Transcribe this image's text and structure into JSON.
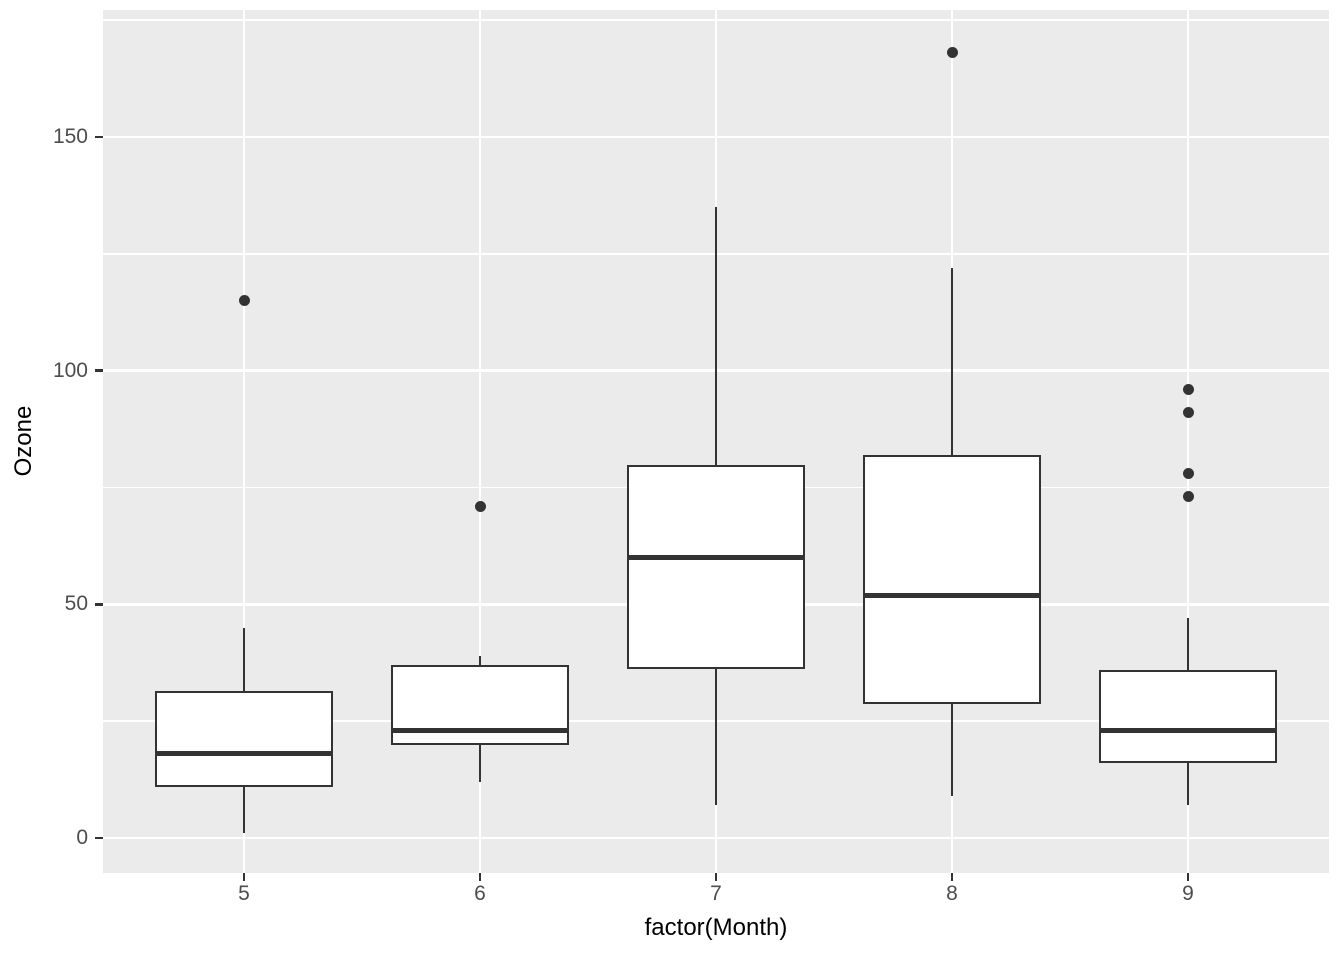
{
  "chart_data": {
    "type": "boxplot",
    "title": "",
    "xlabel": "factor(Month)",
    "ylabel": "Ozone",
    "x_categories": [
      "5",
      "6",
      "7",
      "8",
      "9"
    ],
    "y_major_ticks": [
      0,
      50,
      100,
      150
    ],
    "y_tick_labels": [
      "0",
      "50",
      "100",
      "150"
    ],
    "y_minor_ticks": [
      25,
      75,
      125,
      175
    ],
    "ylim": [
      -7.5,
      177
    ],
    "grid": "on",
    "legend": "none",
    "series": [
      {
        "category": "5",
        "lower_whisker": 1,
        "q1": 11,
        "median": 18,
        "q3": 31.5,
        "upper_whisker": 45,
        "outliers": [
          115
        ]
      },
      {
        "category": "6",
        "lower_whisker": 12,
        "q1": 20,
        "median": 23,
        "q3": 37,
        "upper_whisker": 39,
        "outliers": [
          71
        ]
      },
      {
        "category": "7",
        "lower_whisker": 7,
        "q1": 36.25,
        "median": 60,
        "q3": 79.75,
        "upper_whisker": 135,
        "outliers": []
      },
      {
        "category": "8",
        "lower_whisker": 9,
        "q1": 28.75,
        "median": 52,
        "q3": 82,
        "upper_whisker": 122,
        "outliers": [
          168
        ]
      },
      {
        "category": "9",
        "lower_whisker": 7,
        "q1": 16,
        "median": 23,
        "q3": 36,
        "upper_whisker": 47,
        "outliers": [
          96,
          91,
          78,
          73
        ]
      }
    ],
    "colors": {
      "panel_background": "#EBEBEB",
      "gridline": "#FFFFFF",
      "box_stroke": "#333333",
      "box_fill": "#FFFFFF",
      "outlier": "#333333",
      "tick_label": "#4D4D4D",
      "axis_title": "#000000",
      "tick_mark": "#333333"
    }
  }
}
